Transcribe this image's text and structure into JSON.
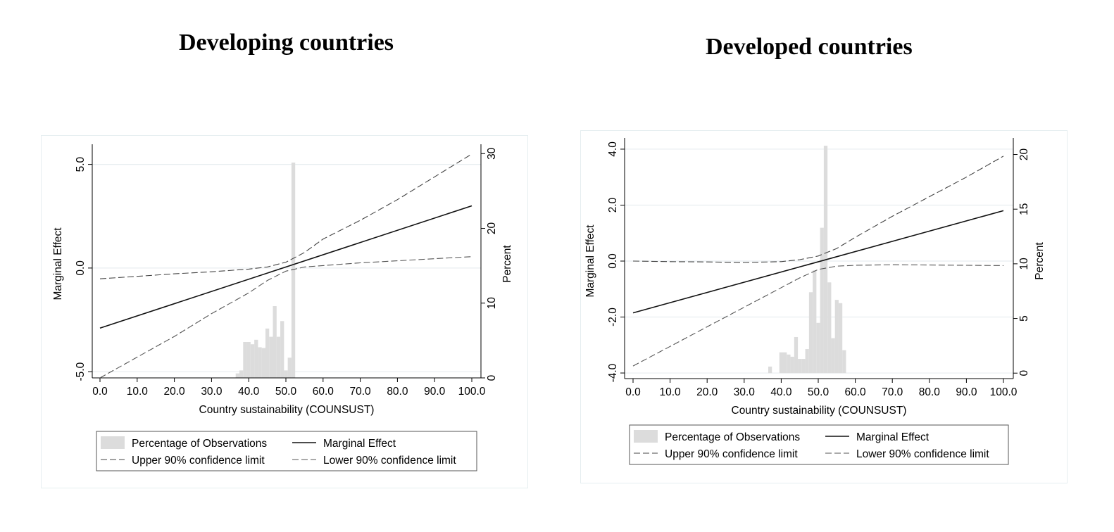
{
  "panels": [
    {
      "title": "Developing countries",
      "chart_data": {
        "type": "line",
        "xlabel": "Country sustainability (COUNSUST)",
        "ylabel": "Marginal Effect",
        "y2label": "Percent",
        "xlim": [
          0,
          100
        ],
        "ylim": [
          -5.3,
          5.7
        ],
        "y2lim": [
          0,
          30.5
        ],
        "x_ticks": [
          "0.0",
          "10.0",
          "20.0",
          "30.0",
          "40.0",
          "50.0",
          "60.0",
          "70.0",
          "80.0",
          "90.0",
          "100.0"
        ],
        "y_ticks": [
          "-5.0",
          "0.0",
          "5.0"
        ],
        "y2_ticks": [
          "0",
          "10",
          "20",
          "30"
        ],
        "gridlines_y": [
          -5,
          0,
          5
        ],
        "series": [
          {
            "name": "Marginal Effect",
            "style": "solid",
            "x": [
              0,
              100
            ],
            "y": [
              -2.9,
              3.0
            ]
          },
          {
            "name": "Upper 90% confidence limit",
            "style": "dashed",
            "x": [
              0,
              10,
              20,
              30,
              40,
              45,
              50,
              55,
              60,
              70,
              80,
              90,
              100
            ],
            "y": [
              -0.52,
              -0.4,
              -0.28,
              -0.18,
              -0.05,
              0.05,
              0.28,
              0.75,
              1.4,
              2.3,
              3.3,
              4.4,
              5.5
            ]
          },
          {
            "name": "Lower 90% confidence limit",
            "style": "dashed",
            "x": [
              0,
              10,
              20,
              30,
              40,
              45,
              50,
              55,
              60,
              70,
              80,
              90,
              100
            ],
            "y": [
              -5.3,
              -4.3,
              -3.3,
              -2.2,
              -1.2,
              -0.6,
              -0.15,
              0.05,
              0.12,
              0.25,
              0.35,
              0.45,
              0.55
            ]
          }
        ],
        "histogram": {
          "name": "Percentage of Observations",
          "bin_width": 1,
          "bins": [
            {
              "x": 37,
              "pct": 0.6
            },
            {
              "x": 38,
              "pct": 1.0
            },
            {
              "x": 39,
              "pct": 4.8
            },
            {
              "x": 40,
              "pct": 4.8
            },
            {
              "x": 41,
              "pct": 4.5
            },
            {
              "x": 42,
              "pct": 5.1
            },
            {
              "x": 43,
              "pct": 4.1
            },
            {
              "x": 44,
              "pct": 4.0
            },
            {
              "x": 45,
              "pct": 6.6
            },
            {
              "x": 46,
              "pct": 5.5
            },
            {
              "x": 47,
              "pct": 9.6
            },
            {
              "x": 48,
              "pct": 5.5
            },
            {
              "x": 49,
              "pct": 7.6
            },
            {
              "x": 50,
              "pct": 1.0
            },
            {
              "x": 51,
              "pct": 2.7
            },
            {
              "x": 52,
              "pct": 28.8
            }
          ]
        },
        "legend": {
          "placement": "bottom",
          "entries": [
            "Percentage of Observations",
            "Marginal Effect",
            "Upper 90% confidence limit",
            "Lower 90% confidence limit"
          ]
        }
      }
    },
    {
      "title": "Developed countries",
      "chart_data": {
        "type": "line",
        "xlabel": "Country sustainability (COUNSUST)",
        "ylabel": "Marginal Effect",
        "y2label": "Percent",
        "xlim": [
          0,
          100
        ],
        "ylim": [
          -4.2,
          4.2
        ],
        "y2lim": [
          -0.5,
          21
        ],
        "x_ticks": [
          "0.0",
          "10.0",
          "20.0",
          "30.0",
          "40.0",
          "50.0",
          "60.0",
          "70.0",
          "80.0",
          "90.0",
          "100.0"
        ],
        "y_ticks": [
          "-4.0",
          "-2.0",
          "0.0",
          "2.0",
          "4.0"
        ],
        "y2_ticks": [
          "0",
          "5",
          "10",
          "15",
          "20"
        ],
        "gridlines_y": [
          -4,
          -2,
          0,
          2,
          4
        ],
        "series": [
          {
            "name": "Marginal Effect",
            "style": "solid",
            "x": [
              0,
              100
            ],
            "y": [
              -1.85,
              1.8
            ]
          },
          {
            "name": "Upper 90% confidence limit",
            "style": "dashed",
            "x": [
              0,
              10,
              20,
              30,
              40,
              45,
              50,
              55,
              60,
              70,
              80,
              90,
              100
            ],
            "y": [
              0.0,
              -0.02,
              -0.03,
              -0.05,
              -0.02,
              0.05,
              0.18,
              0.45,
              0.85,
              1.6,
              2.3,
              3.0,
              3.75
            ]
          },
          {
            "name": "Lower 90% confidence limit",
            "style": "dashed",
            "x": [
              0,
              10,
              20,
              30,
              40,
              45,
              50,
              55,
              60,
              70,
              80,
              90,
              100
            ],
            "y": [
              -3.75,
              -3.05,
              -2.35,
              -1.65,
              -0.95,
              -0.6,
              -0.3,
              -0.18,
              -0.15,
              -0.13,
              -0.14,
              -0.15,
              -0.16
            ]
          }
        ],
        "histogram": {
          "name": "Percentage of Observations",
          "bin_width": 1,
          "bins": [
            {
              "x": 37,
              "pct": 0.6
            },
            {
              "x": 40,
              "pct": 1.9
            },
            {
              "x": 41,
              "pct": 1.9
            },
            {
              "x": 42,
              "pct": 1.7
            },
            {
              "x": 43,
              "pct": 1.5
            },
            {
              "x": 44,
              "pct": 3.3
            },
            {
              "x": 45,
              "pct": 1.3
            },
            {
              "x": 46,
              "pct": 1.3
            },
            {
              "x": 47,
              "pct": 2.2
            },
            {
              "x": 48,
              "pct": 7.4
            },
            {
              "x": 49,
              "pct": 9.4
            },
            {
              "x": 50,
              "pct": 4.6
            },
            {
              "x": 51,
              "pct": 13.3
            },
            {
              "x": 52,
              "pct": 20.8
            },
            {
              "x": 53,
              "pct": 8.3
            },
            {
              "x": 54,
              "pct": 3.2
            },
            {
              "x": 55,
              "pct": 6.7
            },
            {
              "x": 56,
              "pct": 6.4
            },
            {
              "x": 57,
              "pct": 2.1
            }
          ]
        },
        "legend": {
          "placement": "bottom",
          "entries": [
            "Percentage of Observations",
            "Marginal Effect",
            "Upper 90% confidence limit",
            "Lower 90% confidence limit"
          ]
        }
      }
    }
  ]
}
